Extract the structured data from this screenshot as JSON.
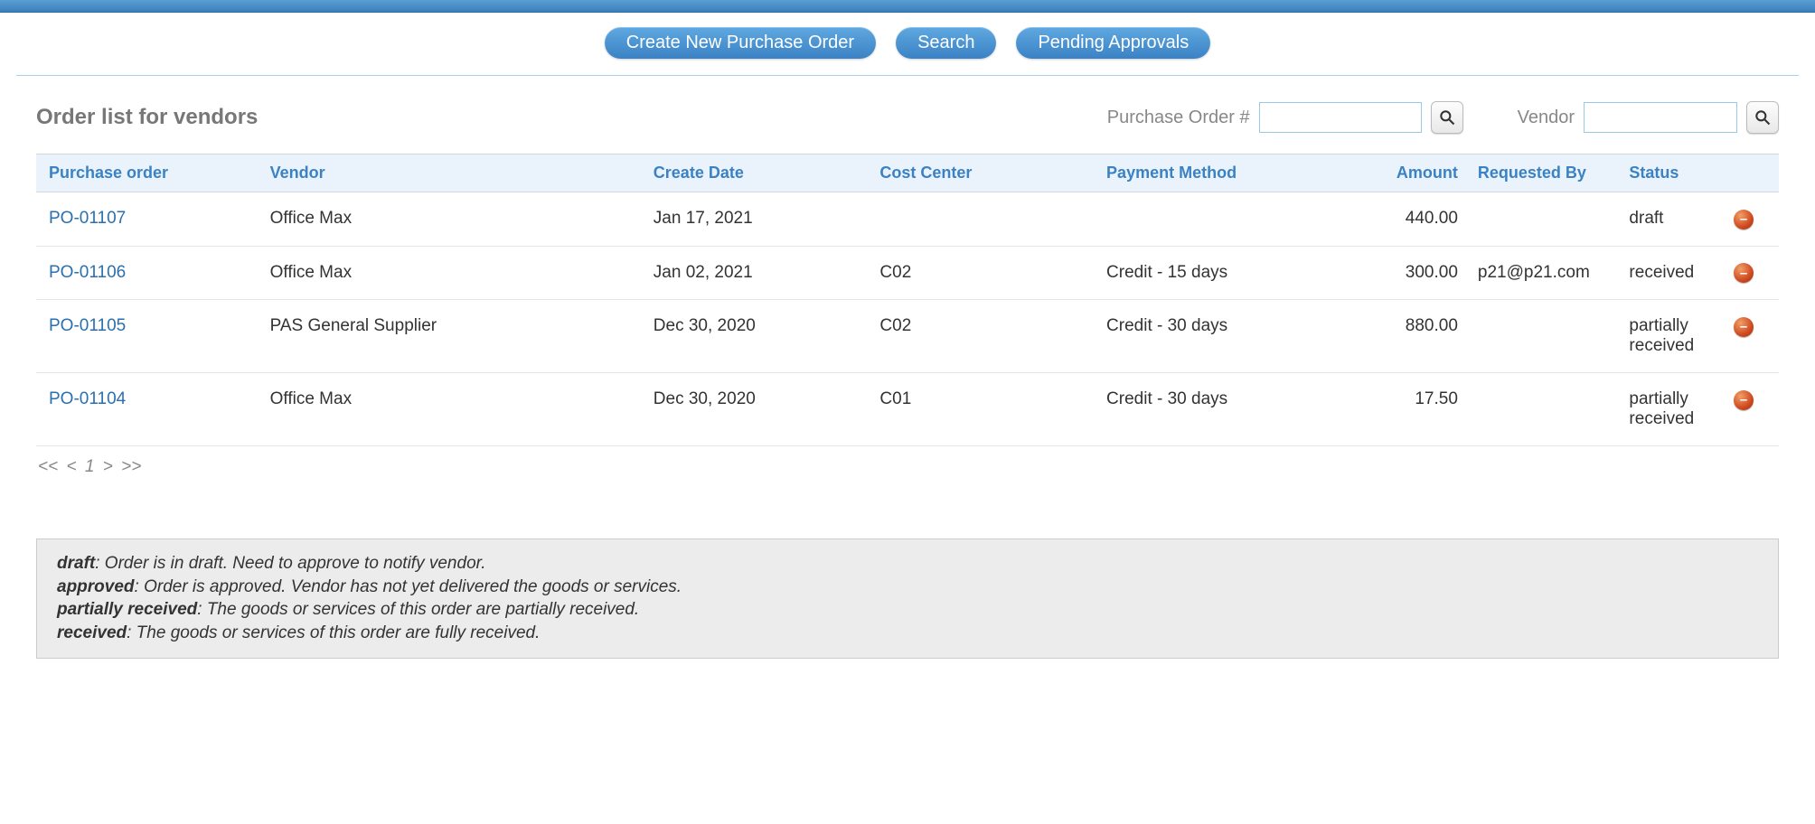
{
  "actions": {
    "create": "Create New Purchase Order",
    "search": "Search",
    "pending": "Pending Approvals"
  },
  "page_title": "Order list for vendors",
  "filters": {
    "po_label": "Purchase Order #",
    "po_value": "",
    "vendor_label": "Vendor",
    "vendor_value": ""
  },
  "columns": {
    "po": "Purchase order",
    "vendor": "Vendor",
    "date": "Create Date",
    "cost": "Cost Center",
    "pay": "Payment Method",
    "amount": "Amount",
    "req": "Requested By",
    "status": "Status"
  },
  "rows": [
    {
      "po": "PO-01107",
      "vendor": "Office Max",
      "date": "Jan 17, 2021",
      "cost": "",
      "pay": "",
      "amount": "440.00",
      "req": "",
      "status": "draft"
    },
    {
      "po": "PO-01106",
      "vendor": "Office Max",
      "date": "Jan 02, 2021",
      "cost": "C02",
      "pay": "Credit - 15 days",
      "amount": "300.00",
      "req": "p21@p21.com",
      "status": "received"
    },
    {
      "po": "PO-01105",
      "vendor": "PAS General Supplier",
      "date": "Dec 30, 2020",
      "cost": "C02",
      "pay": "Credit - 30 days",
      "amount": "880.00",
      "req": "",
      "status": "partially received"
    },
    {
      "po": "PO-01104",
      "vendor": "Office Max",
      "date": "Dec 30, 2020",
      "cost": "C01",
      "pay": "Credit - 30 days",
      "amount": "17.50",
      "req": "",
      "status": "partially received"
    }
  ],
  "pagination": {
    "first": "<<",
    "prev": "<",
    "current": "1",
    "next": ">",
    "last": ">>"
  },
  "legend": {
    "draft_term": "draft",
    "draft_desc": ": Order is in draft. Need to approve to notify vendor.",
    "approved_term": "approved",
    "approved_desc": ": Order is approved. Vendor has not yet delivered the goods or services.",
    "partial_term": "partially received",
    "partial_desc": ": The goods or services of this order are partially received.",
    "received_term": "received",
    "received_desc": ": The goods or services of this order are fully received."
  },
  "colors": {
    "header_bg_top": "#5a9fd4",
    "header_bg_bottom": "#3a7fb8",
    "button_bg_top": "#5fa8e0",
    "button_bg_bottom": "#3a82c4",
    "table_header_bg": "#eaf3fb",
    "table_header_text": "#3a82c4",
    "link": "#2a6fb0",
    "legend_bg": "#ececec",
    "title_color": "#777777"
  }
}
